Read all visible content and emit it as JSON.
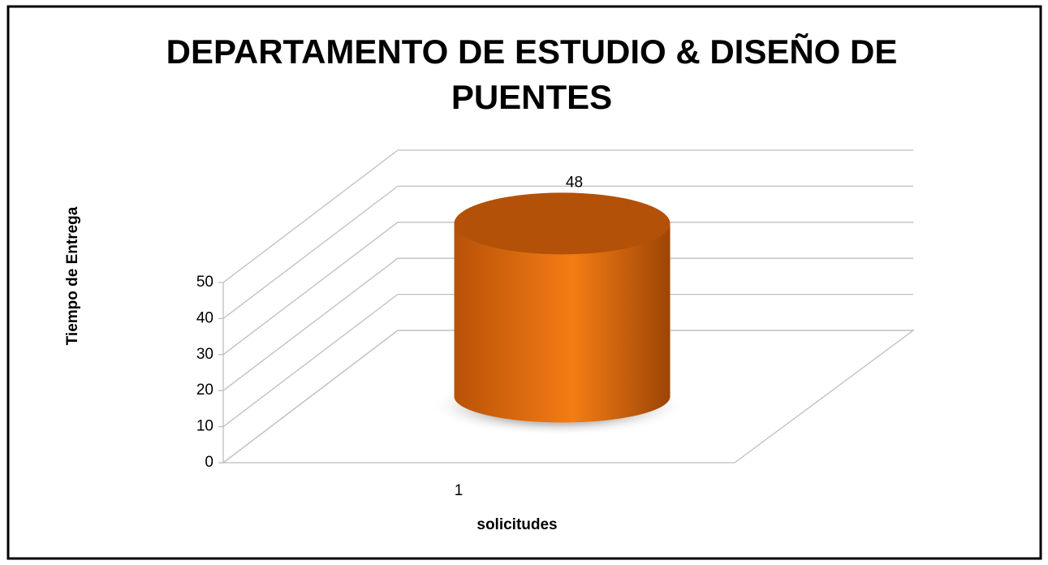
{
  "chart_data": {
    "type": "bar3d_cylinder",
    "title": "DEPARTAMENTO DE ESTUDIO  & DISEÑO DE PUENTES",
    "xlabel": "solicitudes",
    "ylabel": "Tiempo de Entrega",
    "categories": [
      "1"
    ],
    "values": [
      48
    ],
    "color": "#e8700f",
    "ylim": [
      0,
      50
    ],
    "yticks": [
      0,
      10,
      20,
      30,
      40,
      50
    ],
    "grid": true
  }
}
